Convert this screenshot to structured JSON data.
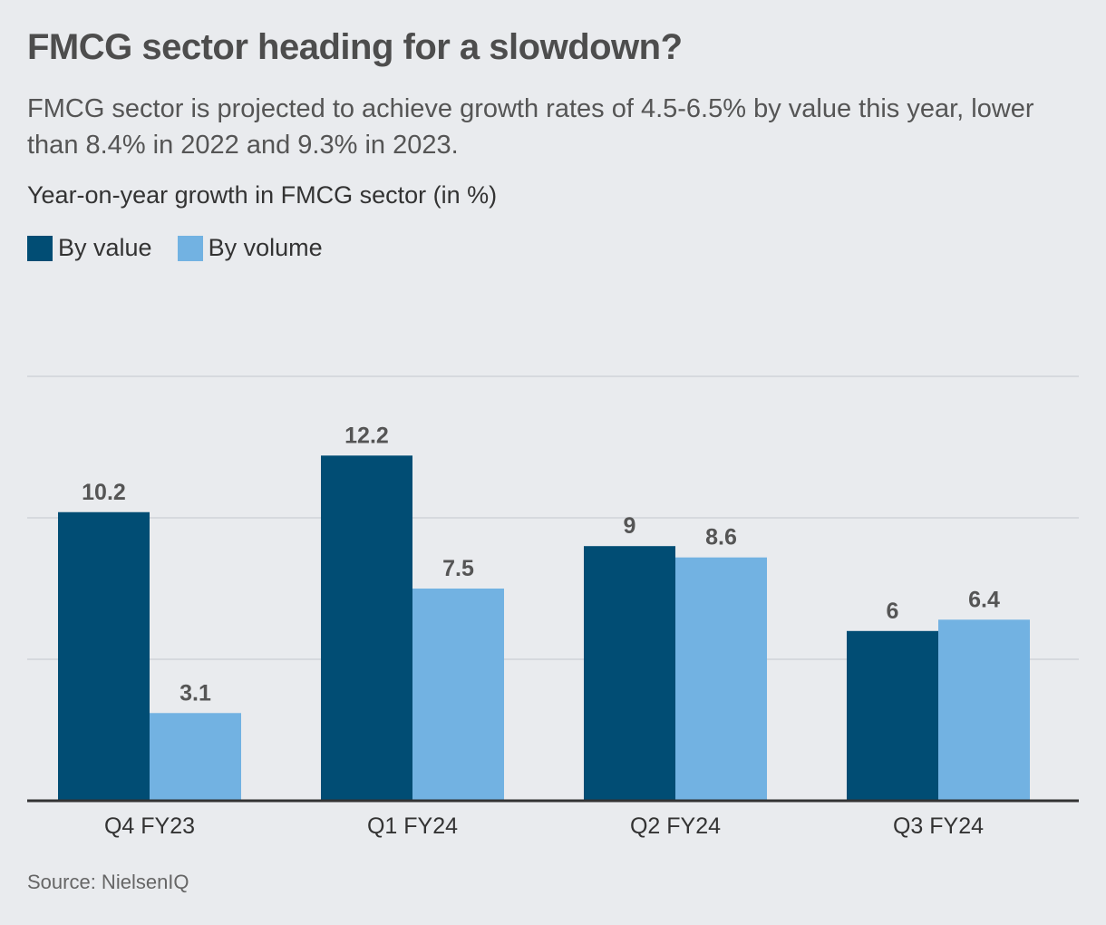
{
  "title": "FMCG sector heading for a slowdown?",
  "subtitle": "FMCG sector is projected to achieve growth rates of 4.5-6.5% by value this year, lower than 8.4% in 2022 and 9.3% in 2023.",
  "source": "Source: NielsenIQ",
  "chart_data": {
    "type": "bar",
    "ylabel": "Year-on-year growth in FMCG sector (in %)",
    "categories": [
      "Q4 FY23",
      "Q1 FY24",
      "Q2 FY24",
      "Q3 FY24"
    ],
    "series": [
      {
        "name": "By value",
        "color": "#014d74",
        "values": [
          10.2,
          12.2,
          9,
          6
        ]
      },
      {
        "name": "By volume",
        "color": "#72b2e2",
        "values": [
          3.1,
          7.5,
          8.6,
          6.4
        ]
      }
    ],
    "ylim": [
      0,
      15
    ],
    "grid": true,
    "legend": "top-left"
  }
}
